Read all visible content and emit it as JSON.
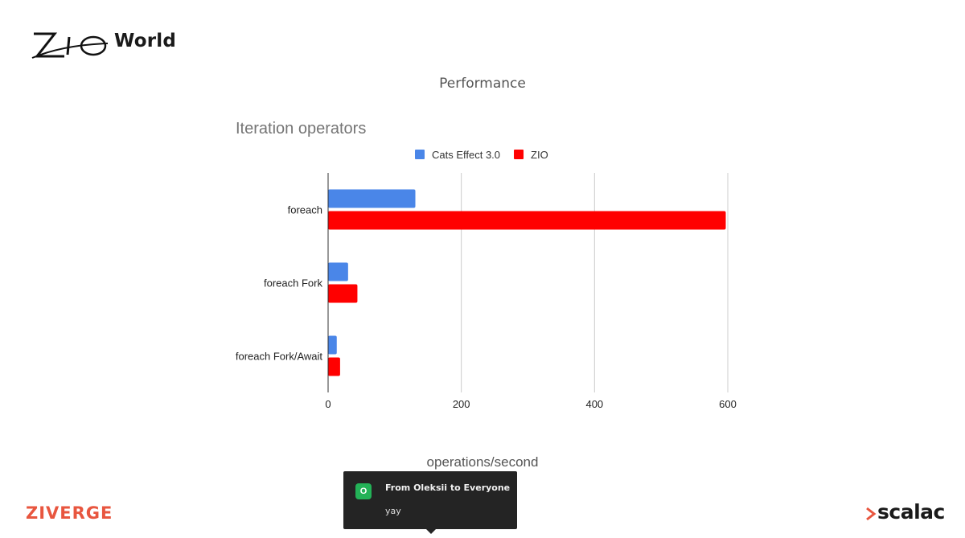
{
  "header": {
    "logo_text": "ZIO",
    "logo_word": "World",
    "slide_title": "Performance"
  },
  "chart_data": {
    "type": "bar",
    "orientation": "horizontal",
    "title": "Iteration operators",
    "xlabel": "operations/second",
    "ylabel": "",
    "categories": [
      "foreach",
      "foreach Fork",
      "foreach Fork/Await"
    ],
    "series": [
      {
        "name": "Cats Effect 3.0",
        "color": "#4a86e8",
        "values": [
          131,
          30,
          13
        ]
      },
      {
        "name": "ZIO",
        "color": "#ff0000",
        "values": [
          597,
          44,
          18
        ]
      }
    ],
    "xlim": [
      0,
      600
    ],
    "xticks": [
      0,
      200,
      400,
      600
    ],
    "grid": true,
    "legend_position": "top"
  },
  "footer": {
    "left_brand": "ZIVERGE",
    "right_brand": "scalac"
  },
  "chat_toast": {
    "avatar_letter": "O",
    "title": "From Oleksii to Everyone",
    "message": "yay"
  }
}
